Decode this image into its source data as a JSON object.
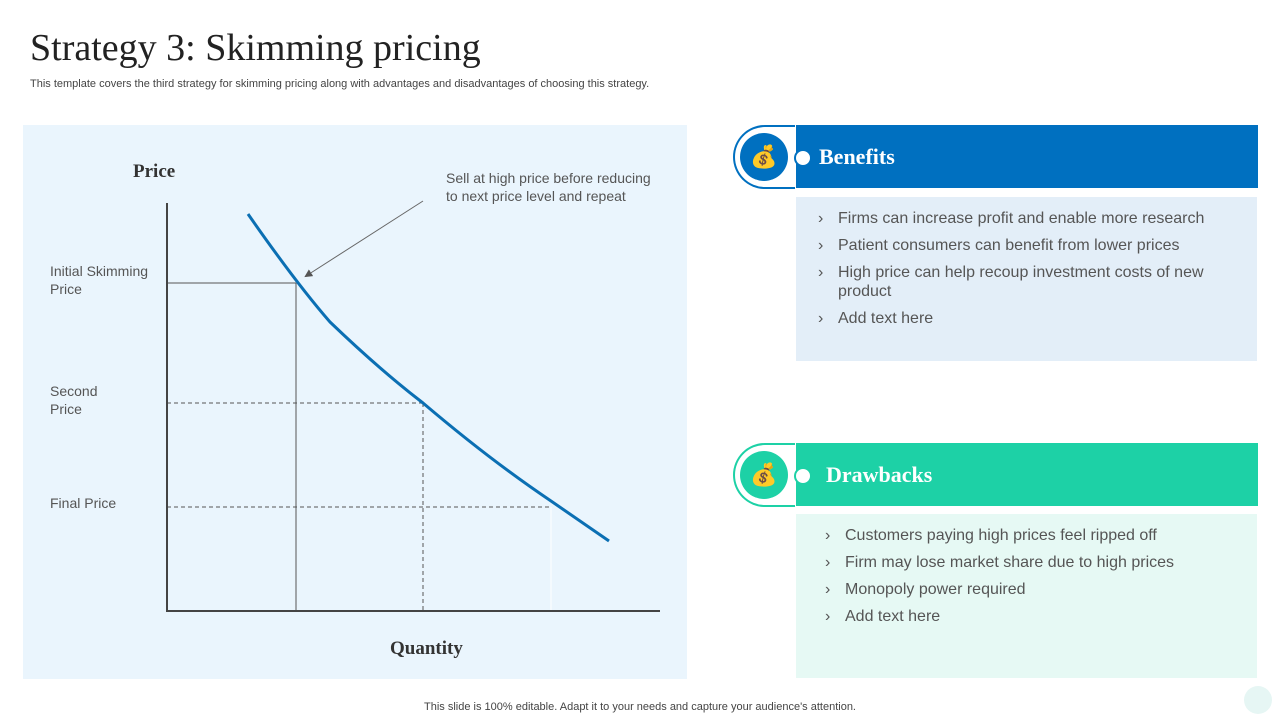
{
  "title": "Strategy 3: Skimming pricing",
  "subtitle": "This template covers the third strategy for skimming pricing along with advantages and disadvantages of choosing this strategy.",
  "diagram": {
    "y_axis_label": "Price",
    "x_axis_label": "Quantity",
    "levels": [
      "Initial Skimming",
      "Price",
      "Second",
      "Price",
      "Final Price"
    ],
    "annotation": [
      "Sell at high price before reducing",
      "to next price level and repeat"
    ],
    "curve_color": "#0b6fb3"
  },
  "benefits": {
    "title": "Benefits",
    "icon": "money-bag-hand-icon",
    "color": "#0070c0",
    "items": [
      "Firms can increase profit and enable more research",
      "Patient consumers can benefit from lower prices",
      "High price can help recoup investment costs of new product",
      "Add text here"
    ]
  },
  "drawbacks": {
    "title": "Drawbacks",
    "icon": "money-bag-hand-icon",
    "color": "#1dd1a6",
    "items": [
      "Customers paying high prices feel ripped off",
      "Firm may lose market share due to high prices",
      "Monopoly power required",
      "Add text here"
    ]
  },
  "bullet": "›",
  "footer": "This slide is 100% editable. Adapt it to your needs and capture your audience's attention."
}
